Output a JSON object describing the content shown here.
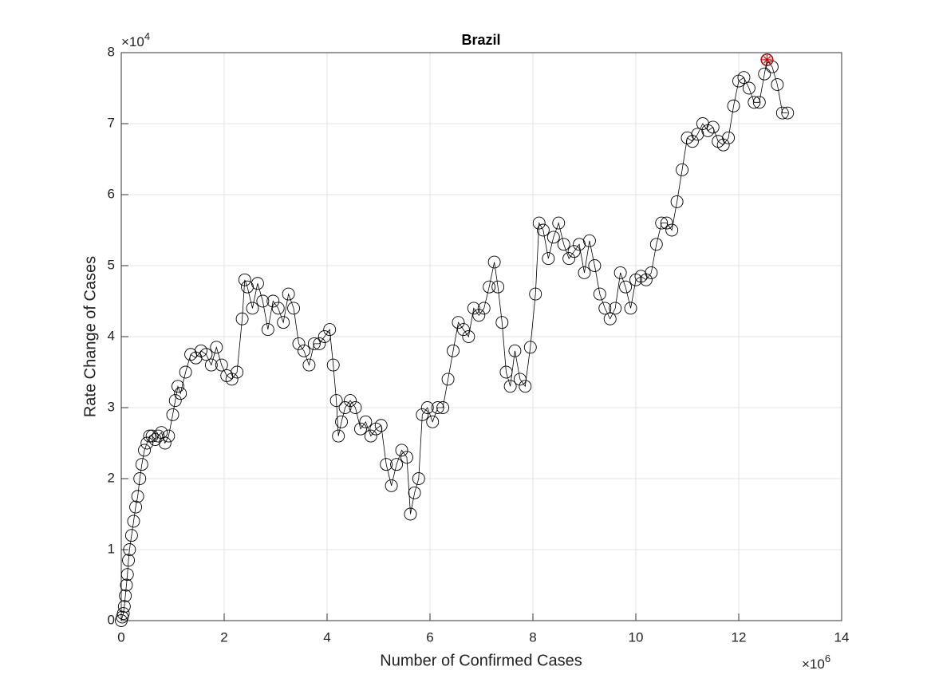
{
  "chart_data": {
    "type": "line-scatter",
    "title": "Brazil",
    "x_label": "Number of Confirmed Cases",
    "y_label": "Rate Change of Cases",
    "x_multiplier": {
      "base": "×10",
      "exponent": "6"
    },
    "y_multiplier": {
      "base": "×10",
      "exponent": "4"
    },
    "xlim": [
      0,
      14
    ],
    "ylim": [
      0,
      8
    ],
    "xticks": [
      0,
      2,
      4,
      6,
      8,
      10,
      12,
      14
    ],
    "yticks": [
      0,
      1,
      2,
      3,
      4,
      5,
      6,
      7,
      8
    ],
    "grid": true,
    "color": "#000000",
    "highlight": {
      "index": 147,
      "color": "#e00000"
    },
    "x": [
      0,
      0.02,
      0.04,
      0.06,
      0.08,
      0.1,
      0.12,
      0.14,
      0.16,
      0.2,
      0.24,
      0.28,
      0.32,
      0.36,
      0.4,
      0.45,
      0.5,
      0.55,
      0.6,
      0.66,
      0.72,
      0.78,
      0.85,
      0.92,
      1.0,
      1.05,
      1.1,
      1.15,
      1.25,
      1.35,
      1.45,
      1.55,
      1.65,
      1.75,
      1.85,
      1.95,
      2.05,
      2.15,
      2.25,
      2.35,
      2.4,
      2.45,
      2.55,
      2.65,
      2.75,
      2.85,
      2.95,
      3.05,
      3.15,
      3.25,
      3.35,
      3.45,
      3.55,
      3.65,
      3.75,
      3.85,
      3.95,
      4.05,
      4.12,
      4.18,
      4.22,
      4.28,
      4.35,
      4.45,
      4.55,
      4.65,
      4.75,
      4.85,
      4.95,
      5.05,
      5.15,
      5.25,
      5.35,
      5.45,
      5.55,
      5.62,
      5.7,
      5.78,
      5.85,
      5.95,
      6.05,
      6.15,
      6.25,
      6.35,
      6.45,
      6.55,
      6.65,
      6.75,
      6.85,
      6.95,
      7.05,
      7.15,
      7.25,
      7.32,
      7.4,
      7.48,
      7.56,
      7.65,
      7.75,
      7.85,
      7.95,
      8.05,
      8.12,
      8.2,
      8.3,
      8.4,
      8.5,
      8.6,
      8.7,
      8.8,
      8.9,
      9.0,
      9.1,
      9.2,
      9.3,
      9.4,
      9.5,
      9.6,
      9.7,
      9.8,
      9.9,
      10.0,
      10.1,
      10.2,
      10.3,
      10.4,
      10.5,
      10.6,
      10.7,
      10.8,
      10.9,
      11.0,
      11.1,
      11.2,
      11.3,
      11.4,
      11.5,
      11.6,
      11.7,
      11.8,
      11.9,
      12.0,
      12.1,
      12.2,
      12.3,
      12.4,
      12.5,
      12.55,
      12.65,
      12.75,
      12.85,
      12.95
    ],
    "y": [
      0,
      0.05,
      0.1,
      0.2,
      0.35,
      0.5,
      0.65,
      0.85,
      1.0,
      1.2,
      1.4,
      1.6,
      1.75,
      2.0,
      2.2,
      2.4,
      2.5,
      2.6,
      2.6,
      2.55,
      2.6,
      2.65,
      2.5,
      2.6,
      2.9,
      3.1,
      3.3,
      3.2,
      3.5,
      3.75,
      3.7,
      3.8,
      3.75,
      3.6,
      3.85,
      3.6,
      3.45,
      3.4,
      3.5,
      4.25,
      4.8,
      4.7,
      4.4,
      4.75,
      4.5,
      4.1,
      4.5,
      4.4,
      4.2,
      4.6,
      4.4,
      3.9,
      3.8,
      3.6,
      3.9,
      3.9,
      4.0,
      4.1,
      3.6,
      3.1,
      2.6,
      2.8,
      3.0,
      3.1,
      3.0,
      2.7,
      2.8,
      2.6,
      2.7,
      2.75,
      2.2,
      1.9,
      2.2,
      2.4,
      2.3,
      1.5,
      1.8,
      2.0,
      2.9,
      3.0,
      2.8,
      3.0,
      3.0,
      3.4,
      3.8,
      4.2,
      4.1,
      4.0,
      4.4,
      4.3,
      4.4,
      4.7,
      5.05,
      4.7,
      4.2,
      3.5,
      3.3,
      3.8,
      3.4,
      3.3,
      3.85,
      4.6,
      5.6,
      5.5,
      5.1,
      5.4,
      5.6,
      5.3,
      5.1,
      5.2,
      5.3,
      4.9,
      5.35,
      5.0,
      4.6,
      4.4,
      4.25,
      4.4,
      4.9,
      4.7,
      4.4,
      4.8,
      4.85,
      4.8,
      4.9,
      5.3,
      5.6,
      5.6,
      5.5,
      5.9,
      6.35,
      6.8,
      6.75,
      6.85,
      7.0,
      6.9,
      6.95,
      6.75,
      6.7,
      6.8,
      7.25,
      7.6,
      7.65,
      7.5,
      7.3,
      7.3,
      7.7,
      7.9,
      7.8,
      7.55,
      7.15,
      7.15
    ]
  }
}
